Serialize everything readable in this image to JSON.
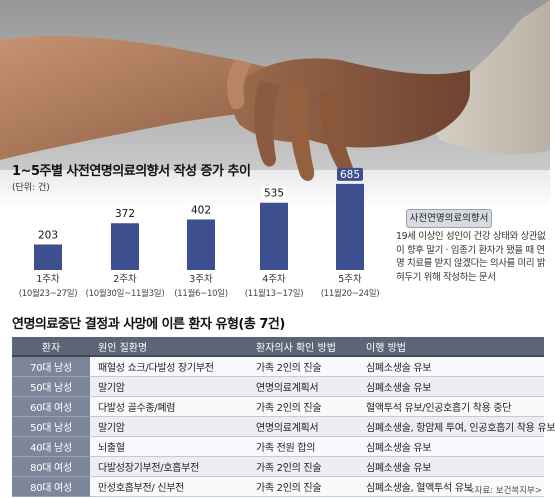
{
  "chart_data": {
    "type": "bar",
    "title": "1~5주별 사전연명의료의향서 작성 증가 추이",
    "unit": "(단위: 건)",
    "categories": [
      "1주차",
      "2주차",
      "3주차",
      "4주차",
      "5주차"
    ],
    "date_ranges": [
      "(10월23~27일)",
      "(10월30일~11월3일)",
      "(11월6~10일)",
      "(11월13~17일)",
      "(11월20~24일)"
    ],
    "values": [
      203,
      372,
      402,
      535,
      685
    ],
    "bar_color": "#3d4f8e",
    "value_label_bg": "#ffffff",
    "highlight_label_bg": "#3d4f8e",
    "ylim": [
      0,
      700
    ],
    "legend": {
      "label": "사전연명의료의향서",
      "description": "19세 이상인 성인이 건강 상태와 상관없이 향후 말기 · 임종기 환자가 됐을 때 연명 치료를 받지 않겠다는 의사를 미리 밝혀두기 위해 작성하는 문서"
    }
  },
  "table": {
    "title": "연명의료중단 결정과 사망에 이른 환자 유형(총 7건)",
    "headers": [
      "환자",
      "원인 질환명",
      "환자의사 확인 방법",
      "이행 방법"
    ],
    "rows": [
      [
        "70대 남성",
        "패혈성 쇼크/다발성 장기부전",
        "가족 2인의 진술",
        "심폐소생술 유보"
      ],
      [
        "50대 남성",
        "말기암",
        "연명의료계획서",
        "심폐소생술 유보"
      ],
      [
        "60대 여성",
        "다발성 골수종/폐렴",
        "가족 2인의 진술",
        "혈액투석 유보/인공호흡기 착용 중단"
      ],
      [
        "50대 남성",
        "말기암",
        "연명의료계획서",
        "심폐소생술, 항암제 투여, 인공호흡기 착용 유보"
      ],
      [
        "40대 남성",
        "뇌출혈",
        "가족 전원 합의",
        "심폐소생술 유보"
      ],
      [
        "80대 여성",
        "다발성장기부전/호흡부전",
        "가족 2인의 진술",
        "심폐소생술 유보"
      ],
      [
        "80대 여성",
        "만성호흡부전/ 신부전",
        "가족 2인의 진술",
        "심폐소생술, 혈액투석 유보"
      ]
    ]
  },
  "source": "<자료: 보건복지부>"
}
